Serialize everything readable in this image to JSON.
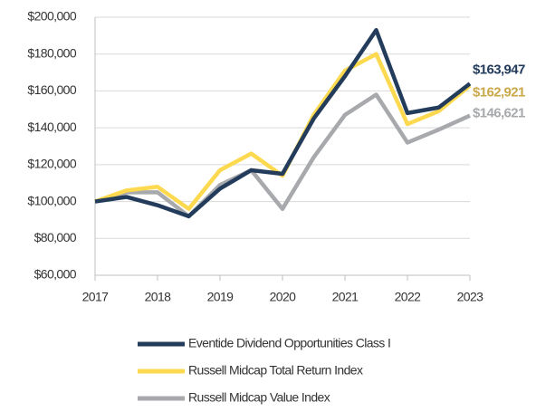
{
  "chart_data": {
    "type": "line",
    "x": [
      2017,
      2017.5,
      2018,
      2018.5,
      2019,
      2019.5,
      2020,
      2020.5,
      2021,
      2021.5,
      2022,
      2022.5,
      2023
    ],
    "xlim": [
      2017,
      2023
    ],
    "xticks": [
      2017,
      2018,
      2019,
      2020,
      2021,
      2022,
      2023
    ],
    "ylim": [
      60000,
      200000
    ],
    "yticks": [
      {
        "value": 60000,
        "label": "$60,000"
      },
      {
        "value": 80000,
        "label": "$80,000"
      },
      {
        "value": 100000,
        "label": "$100,000"
      },
      {
        "value": 120000,
        "label": "$120,000"
      },
      {
        "value": 140000,
        "label": "$140,000"
      },
      {
        "value": 160000,
        "label": "$160,000"
      },
      {
        "value": 180000,
        "label": "$180,000"
      },
      {
        "value": 200000,
        "label": "$200,000"
      }
    ],
    "grid": true,
    "legend": "bottom",
    "series": [
      {
        "name": "Eventide Dividend Opportunities Class I",
        "color": "#233c5c",
        "label_color": "#233c5c",
        "values": [
          100000,
          102500,
          98000,
          92000,
          107000,
          117000,
          115000,
          145000,
          168000,
          193000,
          148000,
          151000,
          163947
        ],
        "value_labels": [
          null,
          null,
          null,
          null,
          null,
          null,
          null,
          null,
          null,
          null,
          null,
          null,
          "$163,947"
        ]
      },
      {
        "name": "Russell Midcap Total Return Index",
        "color": "#fdd94f",
        "label_color": "#c9a94a",
        "values": [
          100000,
          106000,
          108000,
          96000,
          117000,
          126000,
          114000,
          147000,
          171000,
          180000,
          142000,
          149000,
          162921
        ],
        "value_labels": [
          null,
          null,
          null,
          null,
          null,
          null,
          null,
          null,
          null,
          null,
          null,
          null,
          "$162,921"
        ]
      },
      {
        "name": "Russell Midcap Value Index",
        "color": "#a7a9ac",
        "label_color": "#a7a9ac",
        "values": [
          100000,
          105000,
          105000,
          92000,
          109000,
          117000,
          96000,
          124000,
          147000,
          158000,
          132000,
          139000,
          146621
        ],
        "value_labels": [
          null,
          null,
          null,
          null,
          null,
          null,
          null,
          null,
          null,
          null,
          null,
          null,
          "$146,621"
        ]
      }
    ]
  }
}
